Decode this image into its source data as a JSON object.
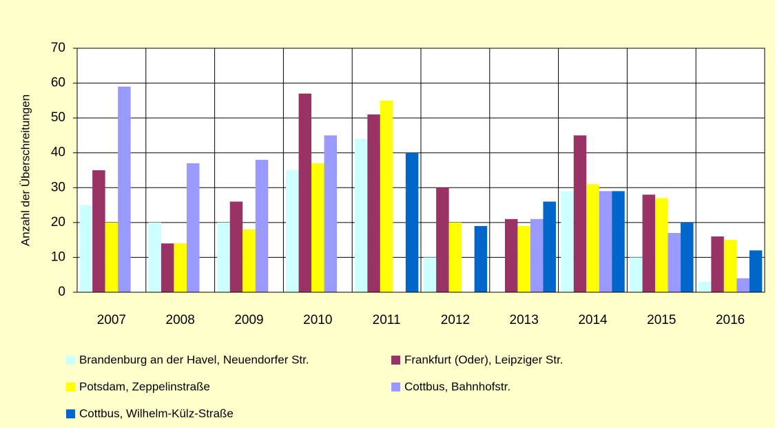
{
  "chart_data": {
    "type": "bar",
    "y_label": "Anzahl der Überschreitungen",
    "categories": [
      "2007",
      "2008",
      "2009",
      "2010",
      "2011",
      "2012",
      "2013",
      "2014",
      "2015",
      "2016"
    ],
    "series": [
      {
        "name": "Brandenburg an der Havel, Neuendorfer Str.",
        "color": "#ccffff",
        "values": [
          25,
          20,
          20,
          35,
          44,
          10,
          null,
          29,
          10,
          3
        ]
      },
      {
        "name": "Frankfurt (Oder), Leipziger Str.",
        "color": "#993366",
        "values": [
          35,
          14,
          26,
          57,
          51,
          30,
          21,
          45,
          28,
          16
        ]
      },
      {
        "name": "Potsdam, Zeppelinstraße",
        "color": "#ffff00",
        "values": [
          20,
          14,
          18,
          37,
          55,
          20,
          19,
          31,
          27,
          15
        ]
      },
      {
        "name": "Cottbus, Bahnhofstr.",
        "color": "#9999ff",
        "values": [
          59,
          37,
          38,
          45,
          null,
          null,
          21,
          29,
          17,
          4
        ]
      },
      {
        "name": "Cottbus, Wilhelm-Külz-Straße",
        "color": "#0066cc",
        "values": [
          null,
          null,
          null,
          null,
          40,
          19,
          26,
          29,
          20,
          12
        ]
      }
    ],
    "ylim": [
      0,
      70
    ],
    "yticks": [
      0,
      10,
      20,
      30,
      40,
      50,
      60,
      70
    ],
    "grid": true
  }
}
